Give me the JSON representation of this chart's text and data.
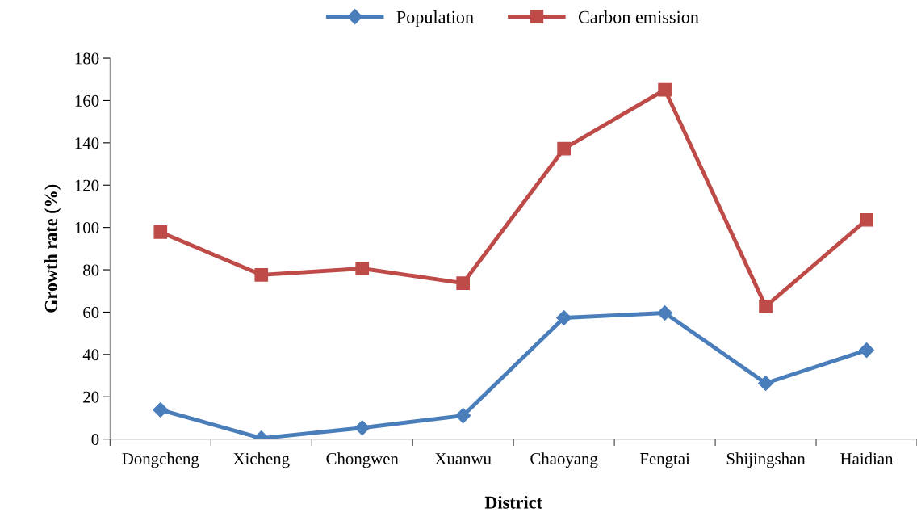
{
  "chart_data": {
    "type": "line",
    "xlabel": "District",
    "ylabel": "Growth rate (%)",
    "categories": [
      "Dongcheng",
      "Xicheng",
      "Chongwen",
      "Xuanwu",
      "Chaoyang",
      "Fengtai",
      "Shijingshan",
      "Haidian"
    ],
    "series": [
      {
        "name": "Population",
        "color": "#4a7ebb",
        "marker": "diamond",
        "values": [
          13.8,
          0.4,
          5.3,
          11.1,
          57.3,
          59.6,
          26.4,
          42.0
        ]
      },
      {
        "name": "Carbon emission",
        "color": "#be4b48",
        "marker": "square",
        "values": [
          97.8,
          77.6,
          80.6,
          73.7,
          137.2,
          165.1,
          62.7,
          103.6
        ]
      }
    ],
    "ylim": [
      0,
      180
    ],
    "yticks": [
      0,
      20,
      40,
      60,
      80,
      100,
      120,
      140,
      160,
      180
    ],
    "grid": false,
    "legend": "top",
    "line_style": "solid"
  }
}
